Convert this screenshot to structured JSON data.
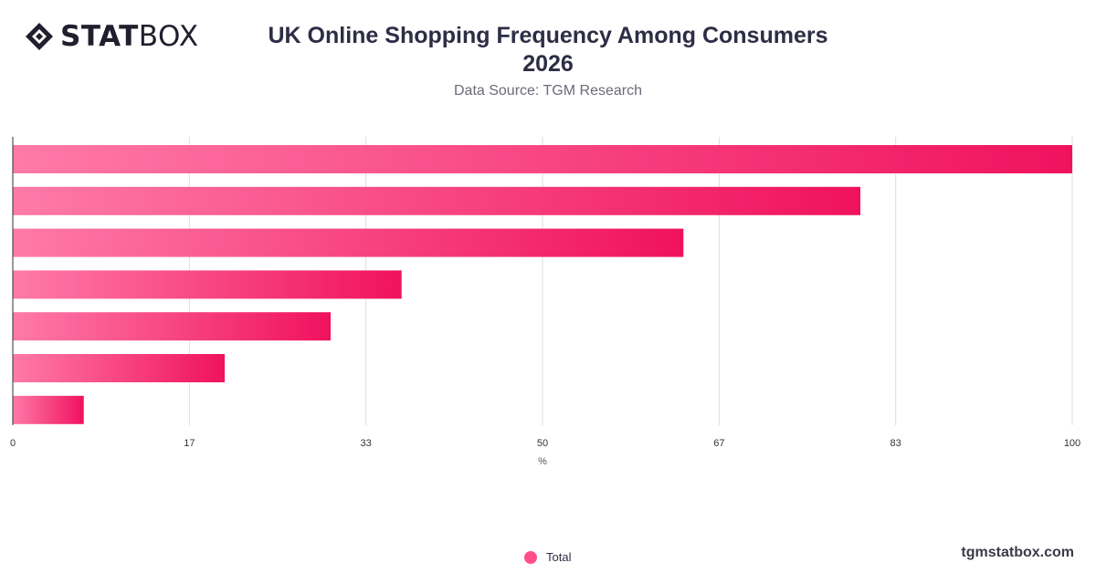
{
  "header": {
    "logo_bold": "STAT",
    "logo_light": "BOX",
    "title_line1": "UK Online Shopping Frequency Among Consumers",
    "title_line2": "2026",
    "subtitle": "Data Source: TGM Research"
  },
  "chart_data": {
    "type": "bar",
    "orientation": "horizontal",
    "categories": [
      "",
      "",
      "",
      "",
      "",
      "",
      ""
    ],
    "series": [
      {
        "name": "Total",
        "values": [
          100,
          80,
          63.3,
          36.7,
          30,
          20,
          6.7
        ]
      }
    ],
    "xlabel": "%",
    "ylabel": "",
    "xlim": [
      0,
      100
    ],
    "xticks": [
      "0",
      "17",
      "33",
      "50",
      "67",
      "83",
      "100"
    ],
    "grid": true,
    "legend": "bottom-center",
    "colors": {
      "bar_start": "#ff7aa8",
      "bar_end": "#f0125e",
      "grid": "#dddddd",
      "axis": "#333333",
      "text": "#333333"
    }
  },
  "legend": {
    "label": "Total",
    "color": "#ff4f8b"
  },
  "footer": {
    "brand": "tgmstatbox.com"
  }
}
